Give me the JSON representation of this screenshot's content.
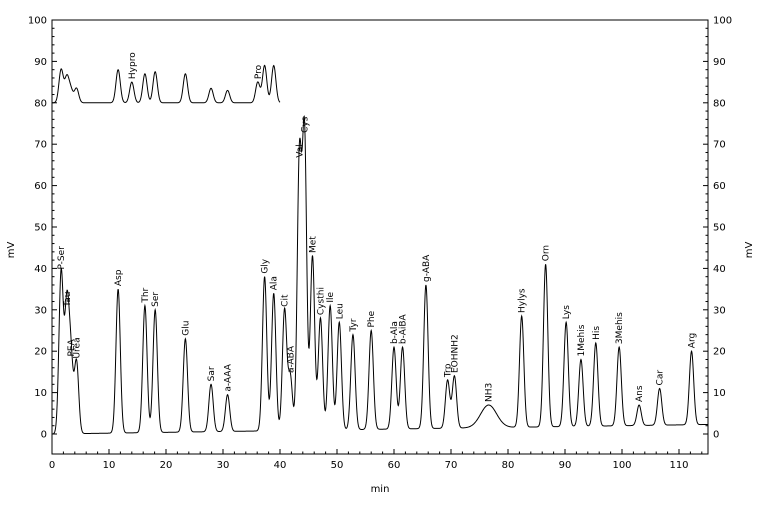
{
  "chart_data": {
    "type": "line",
    "xlabel": "min",
    "ylabel_left": "mV",
    "ylabel_right": "mV",
    "xlim": [
      0,
      115
    ],
    "ylim": [
      0,
      100
    ],
    "x_ticks": [
      0,
      10,
      20,
      30,
      40,
      50,
      60,
      70,
      80,
      90,
      100,
      110
    ],
    "y_ticks": [
      0,
      10,
      20,
      30,
      40,
      50,
      60,
      70,
      80,
      90,
      100
    ],
    "grid": false,
    "line_color": "#000000",
    "series": [
      {
        "peaks": [
          {
            "label": "P-Ser",
            "x": 1.6,
            "y": 39
          },
          {
            "label": "Tau",
            "x": 2.6,
            "y": 30
          },
          {
            "label": "PEA",
            "x": 3.3,
            "y": 18
          },
          {
            "label": "Urea",
            "x": 4.3,
            "y": 17.5
          },
          {
            "label": "Asp",
            "x": 11.6,
            "y": 35
          },
          {
            "label": "Thr",
            "x": 16.3,
            "y": 31
          },
          {
            "label": "Ser",
            "x": 18.1,
            "y": 30
          },
          {
            "label": "Glu",
            "x": 23.4,
            "y": 23
          },
          {
            "label": "Sar",
            "x": 27.9,
            "y": 12
          },
          {
            "label": "a-AAA",
            "x": 30.8,
            "y": 9.5
          },
          {
            "label": "Gly",
            "x": 37.3,
            "y": 38
          },
          {
            "label": "Ala",
            "x": 38.9,
            "y": 34
          },
          {
            "label": "Cit",
            "x": 40.8,
            "y": 30
          },
          {
            "label": "a-ABA",
            "x": 41.8,
            "y": 14
          },
          {
            "label": "Val",
            "x": 43.4,
            "y": 66
          },
          {
            "label": "Cys",
            "x": 44.3,
            "y": 72
          },
          {
            "label": "Met",
            "x": 45.7,
            "y": 43
          },
          {
            "label": "Cysthi",
            "x": 47.1,
            "y": 28
          },
          {
            "label": "Ile",
            "x": 48.8,
            "y": 31
          },
          {
            "label": "Leu",
            "x": 50.4,
            "y": 27
          },
          {
            "label": "Tyr",
            "x": 52.8,
            "y": 24
          },
          {
            "label": "Phe",
            "x": 56.0,
            "y": 25
          },
          {
            "label": "b-Ala",
            "x": 60.0,
            "y": 21
          },
          {
            "label": "b-AiBA",
            "x": 61.5,
            "y": 21
          },
          {
            "label": "g-ABA",
            "x": 65.6,
            "y": 36
          },
          {
            "label": "Trp",
            "x": 69.4,
            "y": 13
          },
          {
            "label": "EOHNH2",
            "x": 70.6,
            "y": 14
          },
          {
            "label": "NH3",
            "x": 76.6,
            "y": 7
          },
          {
            "label": "Hylys",
            "x": 82.4,
            "y": 28.5
          },
          {
            "label": "Orn",
            "x": 86.6,
            "y": 41
          },
          {
            "label": "Lys",
            "x": 90.2,
            "y": 27
          },
          {
            "label": "1Mehis",
            "x": 92.8,
            "y": 18
          },
          {
            "label": "His",
            "x": 95.4,
            "y": 22
          },
          {
            "label": "3Mehis",
            "x": 99.5,
            "y": 21
          },
          {
            "label": "Ans",
            "x": 103.0,
            "y": 7
          },
          {
            "label": "Car",
            "x": 106.6,
            "y": 11
          },
          {
            "label": "Arg",
            "x": 112.2,
            "y": 20
          }
        ]
      },
      {
        "offset": 80,
        "x_end": 40,
        "peaks": [
          {
            "label": "",
            "x": 1.6,
            "y": 88
          },
          {
            "label": "",
            "x": 2.6,
            "y": 86
          },
          {
            "label": "",
            "x": 3.3,
            "y": 83
          },
          {
            "label": "",
            "x": 4.3,
            "y": 83.5
          },
          {
            "label": "",
            "x": 11.6,
            "y": 88
          },
          {
            "label": "Hypro",
            "x": 14.0,
            "y": 85
          },
          {
            "label": "",
            "x": 16.3,
            "y": 87
          },
          {
            "label": "",
            "x": 18.1,
            "y": 87.5
          },
          {
            "label": "",
            "x": 23.4,
            "y": 87
          },
          {
            "label": "",
            "x": 27.9,
            "y": 83.5
          },
          {
            "label": "",
            "x": 30.8,
            "y": 83
          },
          {
            "label": "Pro",
            "x": 36.1,
            "y": 85
          },
          {
            "label": "",
            "x": 37.3,
            "y": 89
          },
          {
            "label": "",
            "x": 38.9,
            "y": 89
          }
        ]
      }
    ]
  }
}
